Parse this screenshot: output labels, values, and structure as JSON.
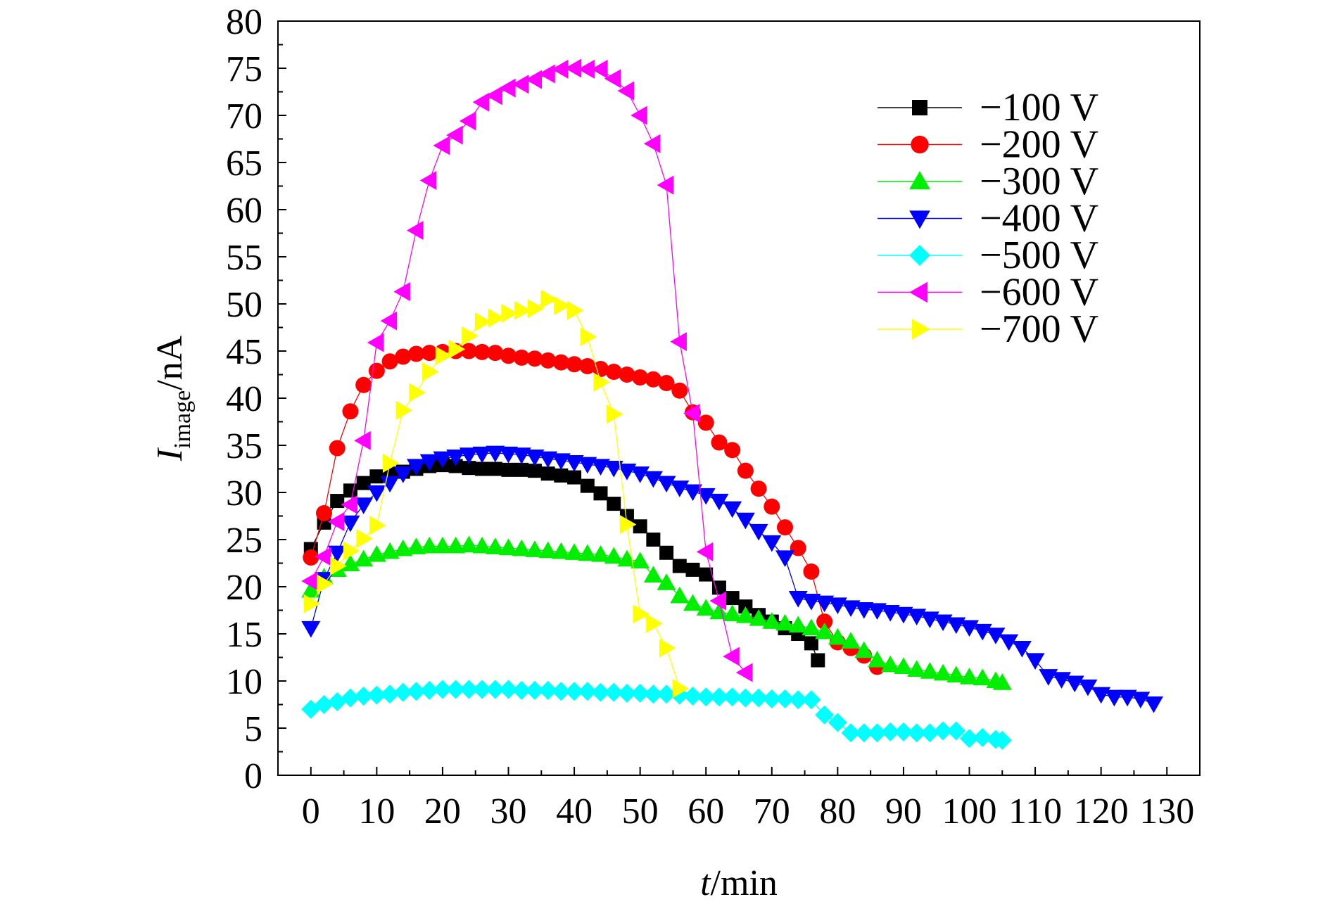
{
  "chart_data": {
    "type": "line",
    "ylabel": {
      "main": "I",
      "sub": "image",
      "unit": "/nA"
    },
    "xlabel": {
      "main": "t",
      "unit": "/min"
    },
    "xlim": [
      -5,
      135
    ],
    "ylim": [
      0,
      80
    ],
    "x_ticks": [
      0,
      10,
      20,
      30,
      40,
      50,
      60,
      70,
      80,
      90,
      100,
      110,
      120,
      130
    ],
    "x_tick_labels": [
      "0",
      "10",
      "20",
      "30",
      "40",
      "50",
      "60",
      "70",
      "80",
      "90",
      "100",
      "110",
      "120",
      "130"
    ],
    "y_ticks": [
      0,
      5,
      10,
      15,
      20,
      25,
      30,
      35,
      40,
      45,
      50,
      55,
      60,
      65,
      70,
      75,
      80
    ],
    "y_tick_labels": [
      "0",
      "5",
      "10",
      "15",
      "20",
      "25",
      "30",
      "35",
      "40",
      "45",
      "50",
      "55",
      "60",
      "65",
      "70",
      "75",
      "80"
    ],
    "grid": false,
    "legend_position": "top-right",
    "series": [
      {
        "name": "−100 V",
        "color": "#000000",
        "marker": "square",
        "x": [
          0,
          2,
          4,
          6,
          8,
          10,
          12,
          14,
          16,
          18,
          20,
          22,
          24,
          26,
          28,
          30,
          32,
          34,
          36,
          38,
          40,
          42,
          44,
          46,
          48,
          50,
          52,
          54,
          56,
          58,
          60,
          62,
          64,
          66,
          68,
          70,
          72,
          74,
          76,
          77
        ],
        "y": [
          24.0,
          26.8,
          29.1,
          30.2,
          31.0,
          31.7,
          32.0,
          32.2,
          32.5,
          32.8,
          32.9,
          32.8,
          32.6,
          32.5,
          32.5,
          32.4,
          32.4,
          32.3,
          32.0,
          31.8,
          31.6,
          30.7,
          29.9,
          28.8,
          27.5,
          26.4,
          25.0,
          23.6,
          22.2,
          21.8,
          21.3,
          19.9,
          18.8,
          17.9,
          17.0,
          16.3,
          15.6,
          15.0,
          14.0,
          12.2
        ]
      },
      {
        "name": "−200 V",
        "color": "#ff0000",
        "marker": "circle",
        "x": [
          0,
          2,
          4,
          6,
          8,
          10,
          12,
          14,
          16,
          18,
          20,
          22,
          24,
          26,
          28,
          30,
          32,
          34,
          36,
          38,
          40,
          42,
          44,
          46,
          48,
          50,
          52,
          54,
          56,
          58,
          60,
          62,
          64,
          66,
          68,
          70,
          72,
          74,
          76,
          78,
          80,
          82,
          84,
          86
        ],
        "y": [
          23.1,
          27.8,
          34.7,
          38.6,
          41.4,
          42.9,
          43.9,
          44.4,
          44.7,
          44.8,
          44.9,
          45.0,
          45.0,
          44.9,
          44.8,
          44.5,
          44.3,
          44.2,
          44.0,
          43.8,
          43.6,
          43.4,
          43.1,
          42.8,
          42.5,
          42.2,
          42.0,
          41.6,
          40.8,
          38.5,
          37.4,
          35.3,
          34.5,
          32.3,
          30.4,
          28.5,
          26.3,
          24.1,
          21.6,
          16.3,
          14.1,
          13.5,
          12.7,
          11.5
        ]
      },
      {
        "name": "−300 V",
        "color": "#00ee00",
        "marker": "triangle-up",
        "x": [
          0,
          2,
          4,
          6,
          8,
          10,
          12,
          14,
          16,
          18,
          20,
          22,
          24,
          26,
          28,
          30,
          32,
          34,
          36,
          38,
          40,
          42,
          44,
          46,
          48,
          50,
          52,
          54,
          56,
          58,
          60,
          62,
          64,
          66,
          68,
          70,
          72,
          74,
          76,
          78,
          80,
          82,
          84,
          86,
          88,
          90,
          92,
          94,
          96,
          98,
          100,
          102,
          104,
          105
        ],
        "y": [
          19.6,
          21.0,
          21.8,
          22.4,
          22.9,
          23.4,
          23.7,
          24.0,
          24.2,
          24.3,
          24.3,
          24.3,
          24.4,
          24.3,
          24.2,
          24.1,
          24.0,
          23.9,
          23.8,
          23.7,
          23.6,
          23.5,
          23.4,
          23.2,
          22.9,
          22.7,
          21.2,
          20.4,
          19.0,
          18.2,
          17.7,
          17.3,
          17.1,
          16.9,
          16.6,
          16.3,
          16.1,
          15.9,
          15.6,
          15.2,
          14.6,
          14.2,
          13.2,
          12.2,
          11.7,
          11.5,
          11.2,
          11.0,
          10.8,
          10.6,
          10.4,
          10.3,
          10.0,
          9.8
        ]
      },
      {
        "name": "−400 V",
        "color": "#0000ff",
        "marker": "triangle-down",
        "x": [
          0,
          2,
          4,
          6,
          8,
          10,
          12,
          14,
          16,
          18,
          20,
          22,
          24,
          26,
          28,
          30,
          32,
          34,
          36,
          38,
          40,
          42,
          44,
          46,
          48,
          50,
          52,
          54,
          56,
          58,
          60,
          62,
          64,
          66,
          68,
          70,
          72,
          74,
          76,
          78,
          80,
          82,
          84,
          86,
          88,
          90,
          92,
          94,
          96,
          98,
          100,
          102,
          104,
          106,
          108,
          110,
          112,
          114,
          116,
          118,
          120,
          122,
          124,
          126,
          128
        ],
        "y": [
          15.6,
          20.8,
          23.6,
          26.8,
          28.7,
          30.0,
          31.0,
          32.0,
          32.8,
          33.3,
          33.6,
          33.8,
          34.0,
          34.1,
          34.2,
          34.1,
          34.0,
          33.8,
          33.6,
          33.4,
          33.2,
          33.0,
          32.8,
          32.6,
          32.3,
          32.0,
          31.5,
          31.0,
          30.5,
          30.1,
          29.7,
          29.1,
          28.3,
          27.1,
          25.9,
          24.7,
          23.1,
          18.8,
          18.5,
          18.3,
          18.1,
          17.8,
          17.6,
          17.5,
          17.3,
          17.1,
          16.9,
          16.6,
          16.3,
          16.0,
          15.7,
          15.3,
          14.9,
          14.2,
          13.5,
          12.2,
          10.5,
          10.2,
          9.8,
          9.4,
          8.6,
          8.3,
          8.3,
          8.1,
          7.6
        ]
      },
      {
        "name": "−500 V",
        "color": "#00ffff",
        "marker": "diamond",
        "x": [
          0,
          2,
          4,
          6,
          8,
          10,
          12,
          14,
          16,
          18,
          20,
          22,
          24,
          26,
          28,
          30,
          32,
          34,
          36,
          38,
          40,
          42,
          44,
          46,
          48,
          50,
          52,
          54,
          56,
          58,
          60,
          62,
          64,
          66,
          68,
          70,
          72,
          74,
          76,
          78,
          80,
          82,
          84,
          86,
          88,
          90,
          92,
          94,
          96,
          98,
          100,
          102,
          104,
          105
        ],
        "y": [
          7.0,
          7.5,
          7.8,
          8.2,
          8.4,
          8.5,
          8.6,
          8.8,
          8.9,
          9.0,
          9.1,
          9.1,
          9.1,
          9.1,
          9.1,
          9.1,
          9.0,
          9.0,
          9.0,
          8.9,
          8.9,
          8.9,
          8.8,
          8.8,
          8.7,
          8.7,
          8.6,
          8.6,
          8.5,
          8.4,
          8.3,
          8.3,
          8.3,
          8.2,
          8.2,
          8.1,
          8.1,
          8.0,
          8.0,
          6.4,
          5.6,
          4.5,
          4.5,
          4.5,
          4.6,
          4.6,
          4.5,
          4.5,
          4.7,
          4.7,
          3.9,
          4.0,
          3.8,
          3.7
        ]
      },
      {
        "name": "−600 V",
        "color": "#ff00ff",
        "marker": "triangle-left",
        "x": [
          0,
          2,
          4,
          6,
          8,
          10,
          12,
          14,
          16,
          18,
          20,
          22,
          24,
          26,
          28,
          30,
          32,
          34,
          36,
          38,
          40,
          42,
          44,
          46,
          48,
          50,
          52,
          54,
          56,
          58,
          60,
          62,
          64,
          66
        ],
        "y": [
          20.6,
          23.2,
          26.9,
          28.7,
          35.5,
          45.9,
          48.2,
          51.3,
          57.8,
          63.1,
          66.8,
          67.9,
          69.4,
          71.4,
          72.1,
          72.9,
          73.3,
          73.8,
          74.4,
          74.9,
          75.0,
          74.9,
          74.9,
          73.9,
          72.6,
          70.0,
          67.0,
          62.6,
          46.0,
          38.4,
          23.7,
          18.5,
          12.6,
          10.9
        ]
      },
      {
        "name": "−700 V",
        "color": "#ffff00",
        "marker": "triangle-right",
        "x": [
          0,
          2,
          4,
          6,
          8,
          10,
          12,
          14,
          16,
          18,
          20,
          22,
          24,
          26,
          28,
          30,
          32,
          34,
          36,
          38,
          40,
          42,
          44,
          46,
          48,
          50,
          52,
          54,
          56
        ],
        "y": [
          18.2,
          20.3,
          22.2,
          23.8,
          25.1,
          26.5,
          33.1,
          38.7,
          40.6,
          42.8,
          44.5,
          45.2,
          46.6,
          48.1,
          48.5,
          49.0,
          49.3,
          49.5,
          50.5,
          49.8,
          49.3,
          46.5,
          41.7,
          38.3,
          26.6,
          17.1,
          16.1,
          13.5,
          9.2
        ]
      }
    ]
  }
}
